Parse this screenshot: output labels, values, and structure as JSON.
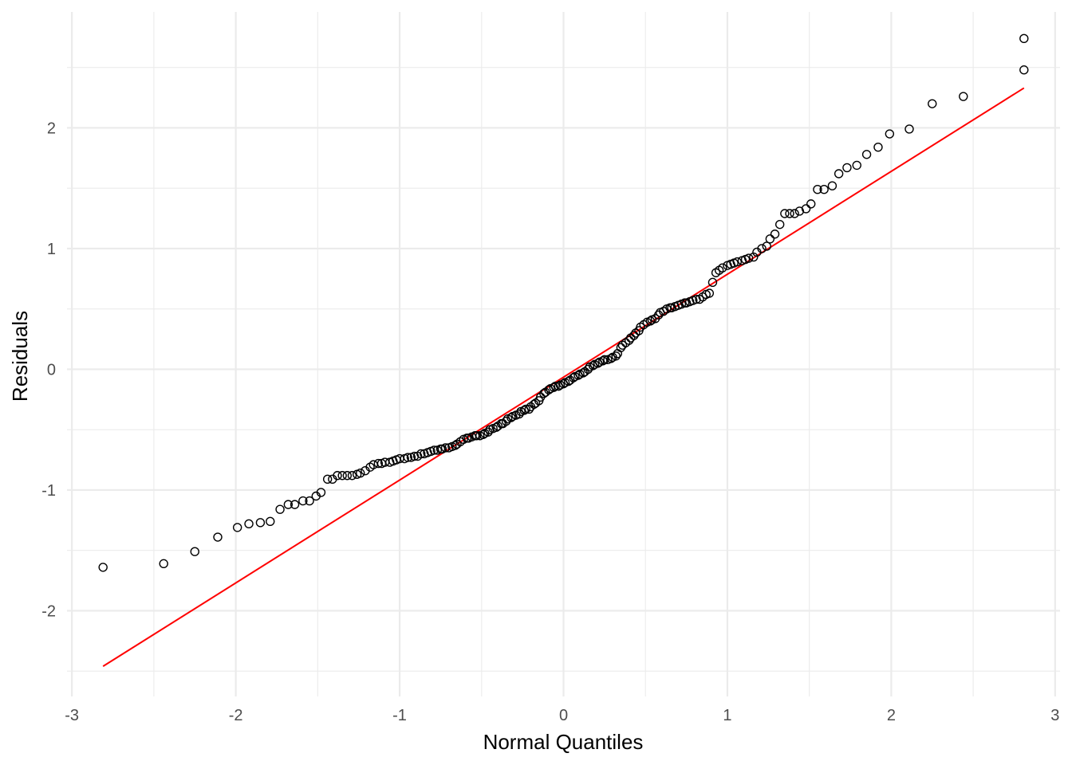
{
  "chart_data": {
    "type": "scatter",
    "title": "",
    "xlabel": "Normal Quantiles",
    "ylabel": "Residuals",
    "xlim": [
      -3.03,
      3.03
    ],
    "ylim": [
      -2.71,
      2.96
    ],
    "x_ticks": [
      -3,
      -2,
      -1,
      0,
      1,
      2,
      3
    ],
    "y_ticks": [
      -2,
      -1,
      0,
      1,
      2
    ],
    "grid": true,
    "colors": {
      "points": "#000000",
      "reference_line": "#ff0000",
      "grid": "#ebebeb"
    },
    "reference_line": {
      "x": [
        -2.81,
        2.81
      ],
      "y": [
        -2.46,
        2.33
      ]
    },
    "points": [
      [
        -2.81,
        -1.64
      ],
      [
        -2.44,
        -1.61
      ],
      [
        -2.25,
        -1.51
      ],
      [
        -2.11,
        -1.39
      ],
      [
        -1.99,
        -1.31
      ],
      [
        -1.92,
        -1.28
      ],
      [
        -1.85,
        -1.27
      ],
      [
        -1.79,
        -1.26
      ],
      [
        -1.73,
        -1.16
      ],
      [
        -1.68,
        -1.12
      ],
      [
        -1.64,
        -1.12
      ],
      [
        -1.59,
        -1.09
      ],
      [
        -1.55,
        -1.09
      ],
      [
        -1.51,
        -1.05
      ],
      [
        -1.48,
        -1.02
      ],
      [
        -1.44,
        -0.91
      ],
      [
        -1.41,
        -0.91
      ],
      [
        -1.38,
        -0.88
      ],
      [
        -1.35,
        -0.88
      ],
      [
        -1.32,
        -0.88
      ],
      [
        -1.29,
        -0.88
      ],
      [
        -1.26,
        -0.87
      ],
      [
        -1.24,
        -0.86
      ],
      [
        -1.21,
        -0.84
      ],
      [
        -1.18,
        -0.81
      ],
      [
        -1.16,
        -0.79
      ],
      [
        -1.13,
        -0.78
      ],
      [
        -1.11,
        -0.78
      ],
      [
        -1.09,
        -0.77
      ],
      [
        -1.06,
        -0.77
      ],
      [
        -1.04,
        -0.76
      ],
      [
        -1.02,
        -0.75
      ],
      [
        -1.0,
        -0.74
      ],
      [
        -0.97,
        -0.74
      ],
      [
        -0.95,
        -0.73
      ],
      [
        -0.93,
        -0.73
      ],
      [
        -0.91,
        -0.72
      ],
      [
        -0.89,
        -0.72
      ],
      [
        -0.87,
        -0.7
      ],
      [
        -0.85,
        -0.7
      ],
      [
        -0.83,
        -0.69
      ],
      [
        -0.81,
        -0.68
      ],
      [
        -0.79,
        -0.67
      ],
      [
        -0.77,
        -0.67
      ],
      [
        -0.75,
        -0.66
      ],
      [
        -0.74,
        -0.66
      ],
      [
        -0.72,
        -0.65
      ],
      [
        -0.7,
        -0.65
      ],
      [
        -0.68,
        -0.64
      ],
      [
        -0.66,
        -0.63
      ],
      [
        -0.65,
        -0.62
      ],
      [
        -0.63,
        -0.6
      ],
      [
        -0.61,
        -0.58
      ],
      [
        -0.59,
        -0.57
      ],
      [
        -0.58,
        -0.57
      ],
      [
        -0.56,
        -0.56
      ],
      [
        -0.54,
        -0.55
      ],
      [
        -0.53,
        -0.55
      ],
      [
        -0.51,
        -0.55
      ],
      [
        -0.49,
        -0.54
      ],
      [
        -0.48,
        -0.53
      ],
      [
        -0.46,
        -0.52
      ],
      [
        -0.45,
        -0.5
      ],
      [
        -0.43,
        -0.49
      ],
      [
        -0.41,
        -0.48
      ],
      [
        -0.4,
        -0.47
      ],
      [
        -0.38,
        -0.45
      ],
      [
        -0.37,
        -0.45
      ],
      [
        -0.35,
        -0.43
      ],
      [
        -0.34,
        -0.41
      ],
      [
        -0.32,
        -0.4
      ],
      [
        -0.31,
        -0.39
      ],
      [
        -0.29,
        -0.38
      ],
      [
        -0.27,
        -0.37
      ],
      [
        -0.26,
        -0.35
      ],
      [
        -0.24,
        -0.34
      ],
      [
        -0.23,
        -0.33
      ],
      [
        -0.21,
        -0.33
      ],
      [
        -0.2,
        -0.31
      ],
      [
        -0.18,
        -0.29
      ],
      [
        -0.17,
        -0.28
      ],
      [
        -0.15,
        -0.26
      ],
      [
        -0.14,
        -0.23
      ],
      [
        -0.12,
        -0.2
      ],
      [
        -0.11,
        -0.19
      ],
      [
        -0.09,
        -0.17
      ],
      [
        -0.08,
        -0.16
      ],
      [
        -0.06,
        -0.15
      ],
      [
        -0.05,
        -0.14
      ],
      [
        -0.03,
        -0.14
      ],
      [
        -0.02,
        -0.13
      ],
      [
        0.0,
        -0.12
      ],
      [
        0.01,
        -0.11
      ],
      [
        0.03,
        -0.1
      ],
      [
        0.04,
        -0.09
      ],
      [
        0.06,
        -0.07
      ],
      [
        0.07,
        -0.06
      ],
      [
        0.09,
        -0.05
      ],
      [
        0.1,
        -0.04
      ],
      [
        0.12,
        -0.03
      ],
      [
        0.13,
        -0.02
      ],
      [
        0.15,
        0.0
      ],
      [
        0.16,
        0.02
      ],
      [
        0.18,
        0.03
      ],
      [
        0.19,
        0.04
      ],
      [
        0.21,
        0.05
      ],
      [
        0.22,
        0.06
      ],
      [
        0.24,
        0.07
      ],
      [
        0.25,
        0.08
      ],
      [
        0.27,
        0.08
      ],
      [
        0.29,
        0.09
      ],
      [
        0.3,
        0.1
      ],
      [
        0.32,
        0.11
      ],
      [
        0.33,
        0.13
      ],
      [
        0.35,
        0.18
      ],
      [
        0.36,
        0.2
      ],
      [
        0.38,
        0.22
      ],
      [
        0.4,
        0.24
      ],
      [
        0.41,
        0.26
      ],
      [
        0.43,
        0.28
      ],
      [
        0.44,
        0.3
      ],
      [
        0.46,
        0.32
      ],
      [
        0.47,
        0.35
      ],
      [
        0.49,
        0.37
      ],
      [
        0.51,
        0.39
      ],
      [
        0.53,
        0.4
      ],
      [
        0.54,
        0.41
      ],
      [
        0.56,
        0.42
      ],
      [
        0.58,
        0.45
      ],
      [
        0.59,
        0.47
      ],
      [
        0.61,
        0.48
      ],
      [
        0.63,
        0.5
      ],
      [
        0.65,
        0.51
      ],
      [
        0.66,
        0.51
      ],
      [
        0.68,
        0.52
      ],
      [
        0.7,
        0.53
      ],
      [
        0.72,
        0.54
      ],
      [
        0.74,
        0.55
      ],
      [
        0.75,
        0.55
      ],
      [
        0.77,
        0.56
      ],
      [
        0.79,
        0.57
      ],
      [
        0.81,
        0.58
      ],
      [
        0.83,
        0.58
      ],
      [
        0.85,
        0.6
      ],
      [
        0.87,
        0.62
      ],
      [
        0.89,
        0.63
      ],
      [
        0.91,
        0.72
      ],
      [
        0.93,
        0.8
      ],
      [
        0.95,
        0.82
      ],
      [
        0.97,
        0.84
      ],
      [
        1.0,
        0.86
      ],
      [
        1.02,
        0.87
      ],
      [
        1.04,
        0.88
      ],
      [
        1.06,
        0.89
      ],
      [
        1.09,
        0.9
      ],
      [
        1.11,
        0.91
      ],
      [
        1.13,
        0.92
      ],
      [
        1.16,
        0.93
      ],
      [
        1.18,
        0.97
      ],
      [
        1.21,
        1.0
      ],
      [
        1.24,
        1.02
      ],
      [
        1.26,
        1.08
      ],
      [
        1.29,
        1.12
      ],
      [
        1.32,
        1.2
      ],
      [
        1.35,
        1.29
      ],
      [
        1.38,
        1.29
      ],
      [
        1.41,
        1.29
      ],
      [
        1.44,
        1.31
      ],
      [
        1.48,
        1.33
      ],
      [
        1.51,
        1.37
      ],
      [
        1.55,
        1.49
      ],
      [
        1.59,
        1.49
      ],
      [
        1.64,
        1.52
      ],
      [
        1.68,
        1.62
      ],
      [
        1.73,
        1.67
      ],
      [
        1.79,
        1.69
      ],
      [
        1.85,
        1.78
      ],
      [
        1.92,
        1.84
      ],
      [
        1.99,
        1.95
      ],
      [
        2.11,
        1.99
      ],
      [
        2.25,
        2.2
      ],
      [
        2.44,
        2.26
      ],
      [
        2.81,
        2.48
      ],
      [
        2.81,
        2.74
      ]
    ]
  }
}
